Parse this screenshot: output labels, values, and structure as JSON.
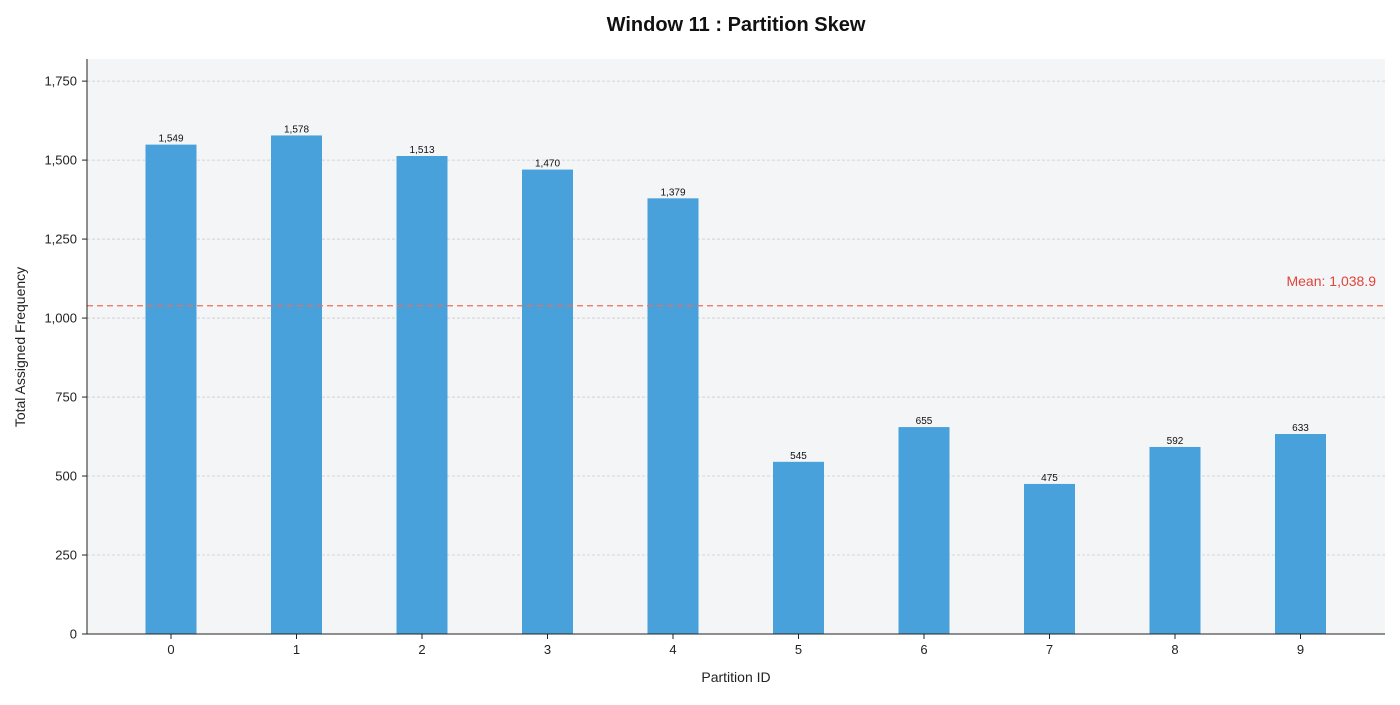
{
  "chart_data": {
    "type": "bar",
    "title": "Window 11 : Partition Skew",
    "xlabel": "Partition ID",
    "ylabel": "Total Assigned Frequency",
    "categories": [
      "0",
      "1",
      "2",
      "3",
      "4",
      "5",
      "6",
      "7",
      "8",
      "9"
    ],
    "values": [
      1549,
      1578,
      1513,
      1470,
      1379,
      545,
      655,
      475,
      592,
      633
    ],
    "value_labels": [
      "1,549",
      "1,578",
      "1,513",
      "1,470",
      "1,379",
      "545",
      "655",
      "475",
      "592",
      "633"
    ],
    "ylim": [
      0,
      1820
    ],
    "yticks": [
      0,
      250,
      500,
      750,
      1000,
      1250,
      1500,
      1750
    ],
    "ytick_labels": [
      "0",
      "250",
      "500",
      "750",
      "1,000",
      "1,250",
      "1,500",
      "1,750"
    ],
    "mean": 1038.9,
    "mean_label": "Mean: 1,038.9",
    "grid": "horizontal dashed",
    "colors": {
      "bar": "#48a1db",
      "mean_line": "#e8705e",
      "mean_text": "#e0443a",
      "plot_background": "#f4f5f7",
      "grid": "#c9cbcf"
    }
  }
}
